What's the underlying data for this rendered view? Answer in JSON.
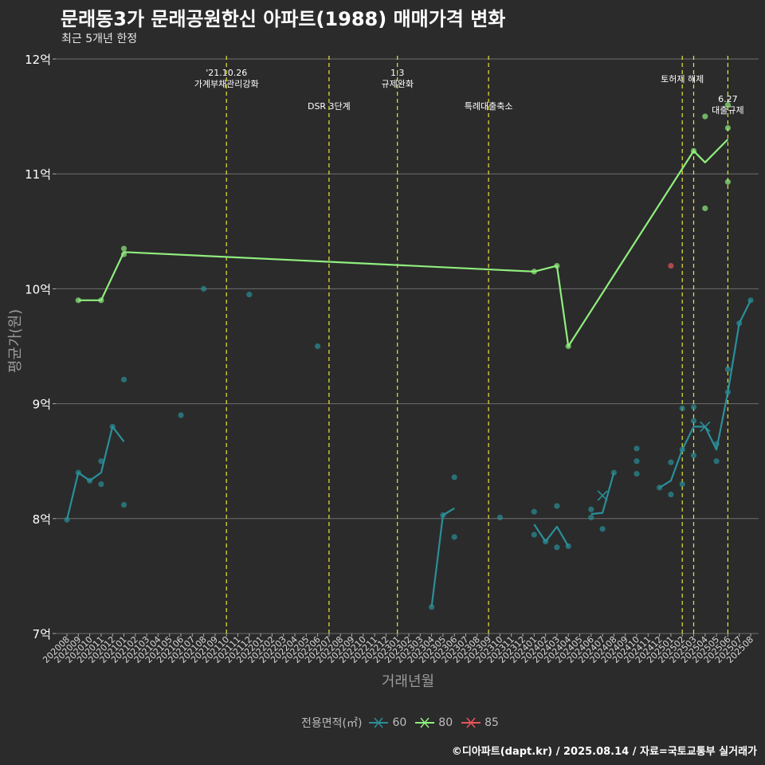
{
  "title": "문래동3가 문래공원한신 아파트(1988) 매매가격 변화",
  "subtitle": "최근 5개년 한정",
  "caption": "©디아파트(dapt.kr) / 2025.08.14 / 자료=국토교통부 실거래가",
  "legend": {
    "title": "전용면적(㎡)",
    "items": [
      {
        "label": "60",
        "color": "#2a8f99"
      },
      {
        "label": "80",
        "color": "#90ee7e"
      },
      {
        "label": "85",
        "color": "#e8555a"
      }
    ]
  },
  "chart_data": {
    "type": "line",
    "xlabel": "거래년월",
    "ylabel": "평균가(원)",
    "ylim": [
      7,
      12
    ],
    "y_ticks": [
      {
        "value": 7,
        "label": "7억"
      },
      {
        "value": 8,
        "label": "8억"
      },
      {
        "value": 9,
        "label": "9억"
      },
      {
        "value": 10,
        "label": "10억"
      },
      {
        "value": 11,
        "label": "11억"
      },
      {
        "value": 12,
        "label": "12억"
      }
    ],
    "categories": [
      "202008",
      "202009",
      "202010",
      "202011",
      "202012",
      "202101",
      "202102",
      "202103",
      "202104",
      "202105",
      "202106",
      "202107",
      "202108",
      "202109",
      "202110",
      "202111",
      "202112",
      "202201",
      "202202",
      "202203",
      "202204",
      "202205",
      "202206",
      "202207",
      "202208",
      "202209",
      "202210",
      "202211",
      "202212",
      "202301",
      "202302",
      "202303",
      "202304",
      "202305",
      "202306",
      "202307",
      "202308",
      "202309",
      "202310",
      "202311",
      "202312",
      "202401",
      "202402",
      "202403",
      "202404",
      "202405",
      "202406",
      "202407",
      "202408",
      "202409",
      "202410",
      "202411",
      "202412",
      "202501",
      "202502",
      "202503",
      "202504",
      "202505",
      "202506",
      "202507",
      "202508"
    ],
    "series": [
      {
        "name": "60",
        "color": "#2a8f99",
        "line_segments": [
          [
            [
              0,
              7.99
            ],
            [
              1,
              8.4
            ],
            [
              2,
              8.33
            ],
            [
              3,
              8.4
            ],
            [
              4,
              8.8
            ],
            [
              5,
              8.67
            ]
          ],
          [
            [
              32,
              7.23
            ],
            [
              33,
              8.03
            ],
            [
              34,
              8.09
            ]
          ],
          [
            [
              41,
              7.95
            ],
            [
              42,
              7.8
            ],
            [
              43,
              7.93
            ],
            [
              44,
              7.76
            ]
          ],
          [
            [
              46,
              8.04
            ],
            [
              47,
              8.05
            ],
            [
              48,
              8.4
            ]
          ],
          [
            [
              52,
              8.27
            ],
            [
              53,
              8.33
            ],
            [
              54,
              8.6
            ],
            [
              55,
              8.8
            ],
            [
              56,
              8.8
            ],
            [
              57,
              8.6
            ],
            [
              58,
              9.1
            ],
            [
              59,
              9.7
            ],
            [
              60,
              9.9
            ]
          ]
        ],
        "points": [
          [
            0,
            7.99
          ],
          [
            1,
            8.4
          ],
          [
            2,
            8.33
          ],
          [
            3,
            8.5
          ],
          [
            3,
            8.3
          ],
          [
            4,
            8.8
          ],
          [
            5,
            9.21
          ],
          [
            5,
            8.12
          ],
          [
            10,
            8.9
          ],
          [
            12,
            10.0
          ],
          [
            16,
            9.95
          ],
          [
            22,
            9.5
          ],
          [
            32,
            7.23
          ],
          [
            33,
            8.03
          ],
          [
            34,
            8.36
          ],
          [
            34,
            7.84
          ],
          [
            38,
            8.01
          ],
          [
            41,
            8.06
          ],
          [
            41,
            7.86
          ],
          [
            42,
            7.8
          ],
          [
            43,
            8.11
          ],
          [
            43,
            7.75
          ],
          [
            44,
            7.76
          ],
          [
            46,
            8.08
          ],
          [
            46,
            8.01
          ],
          [
            47,
            7.91
          ],
          [
            48,
            8.4
          ],
          [
            50,
            8.61
          ],
          [
            50,
            8.5
          ],
          [
            50,
            8.39
          ],
          [
            52,
            8.27
          ],
          [
            53,
            8.49
          ],
          [
            53,
            8.21
          ],
          [
            54,
            8.96
          ],
          [
            54,
            8.6
          ],
          [
            54,
            8.3
          ],
          [
            55,
            8.97
          ],
          [
            55,
            8.85
          ],
          [
            55,
            8.55
          ],
          [
            57,
            8.65
          ],
          [
            57,
            8.5
          ],
          [
            58,
            9.3
          ],
          [
            58,
            9.1
          ],
          [
            59,
            9.7
          ],
          [
            60,
            9.9
          ]
        ],
        "cross_points": [
          [
            47,
            8.2
          ],
          [
            56,
            8.8
          ]
        ]
      },
      {
        "name": "80",
        "color": "#90ee7e",
        "line_segments": [
          [
            [
              1,
              9.9
            ],
            [
              3,
              9.9
            ],
            [
              5,
              10.32
            ],
            [
              41,
              10.15
            ],
            [
              43,
              10.2
            ],
            [
              44,
              9.5
            ],
            [
              55,
              11.2
            ],
            [
              56,
              11.1
            ],
            [
              58,
              11.3
            ]
          ]
        ],
        "points": [
          [
            1,
            9.9
          ],
          [
            3,
            9.9
          ],
          [
            5,
            10.35
          ],
          [
            5,
            10.3
          ],
          [
            41,
            10.15
          ],
          [
            43,
            10.2
          ],
          [
            44,
            9.5
          ],
          [
            55,
            11.2
          ],
          [
            56,
            11.5
          ],
          [
            56,
            10.7
          ],
          [
            58,
            11.6
          ],
          [
            58,
            11.4
          ],
          [
            58,
            10.93
          ]
        ],
        "cross_points": []
      },
      {
        "name": "85",
        "color": "#e8555a",
        "line_segments": [],
        "points": [
          [
            53,
            10.2
          ]
        ],
        "cross_points": []
      }
    ],
    "vlines": [
      {
        "x": 14.0,
        "lines": [
          "'21.10.26",
          "가계부채관리강화"
        ],
        "level": 1
      },
      {
        "x": 23.0,
        "lines": [
          "DSR 3단계"
        ],
        "level": 3
      },
      {
        "x": 29.0,
        "lines": [
          "1.3",
          "규제완화"
        ],
        "level": 1
      },
      {
        "x": 37.0,
        "lines": [
          "특례대출축소"
        ],
        "level": 3
      },
      {
        "x": 54.0,
        "lines": [
          "토허제 해제"
        ],
        "level": 2
      },
      {
        "x": 55.0,
        "lines": [],
        "level": 0
      },
      {
        "x": 58.0,
        "lines": [
          "6.27",
          "대출규제"
        ],
        "level": 4
      }
    ]
  }
}
